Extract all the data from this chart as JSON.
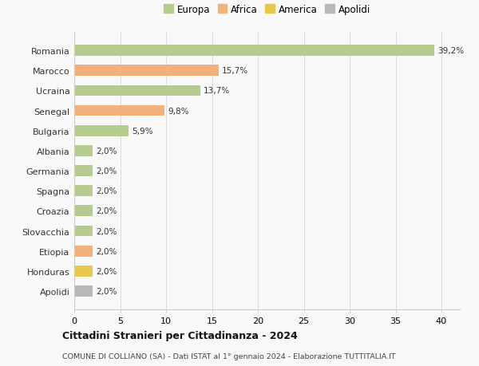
{
  "countries": [
    "Romania",
    "Marocco",
    "Ucraina",
    "Senegal",
    "Bulgaria",
    "Albania",
    "Germania",
    "Spagna",
    "Croazia",
    "Slovacchia",
    "Etiopia",
    "Honduras",
    "Apolidi"
  ],
  "values": [
    39.2,
    15.7,
    13.7,
    9.8,
    5.9,
    2.0,
    2.0,
    2.0,
    2.0,
    2.0,
    2.0,
    2.0,
    2.0
  ],
  "labels": [
    "39,2%",
    "15,7%",
    "13,7%",
    "9,8%",
    "5,9%",
    "2,0%",
    "2,0%",
    "2,0%",
    "2,0%",
    "2,0%",
    "2,0%",
    "2,0%",
    "2,0%"
  ],
  "colors": [
    "#b5cc8e",
    "#f2b07a",
    "#b5cc8e",
    "#f2b07a",
    "#b5cc8e",
    "#b5cc8e",
    "#b5cc8e",
    "#b5cc8e",
    "#b5cc8e",
    "#b5cc8e",
    "#f2b07a",
    "#e8c84a",
    "#b8b8b8"
  ],
  "legend": [
    {
      "label": "Europa",
      "color": "#b5cc8e"
    },
    {
      "label": "Africa",
      "color": "#f2b07a"
    },
    {
      "label": "America",
      "color": "#e8c84a"
    },
    {
      "label": "Apolidi",
      "color": "#b8b8b8"
    }
  ],
  "xlim": [
    0,
    42
  ],
  "xticks": [
    0,
    5,
    10,
    15,
    20,
    25,
    30,
    35,
    40
  ],
  "title": "Cittadini Stranieri per Cittadinanza - 2024",
  "subtitle": "COMUNE DI COLLIANO (SA) - Dati ISTAT al 1° gennaio 2024 - Elaborazione TUTTITALIA.IT",
  "bg_color": "#f9f9f9",
  "grid_color": "#dddddd",
  "bar_height": 0.55
}
